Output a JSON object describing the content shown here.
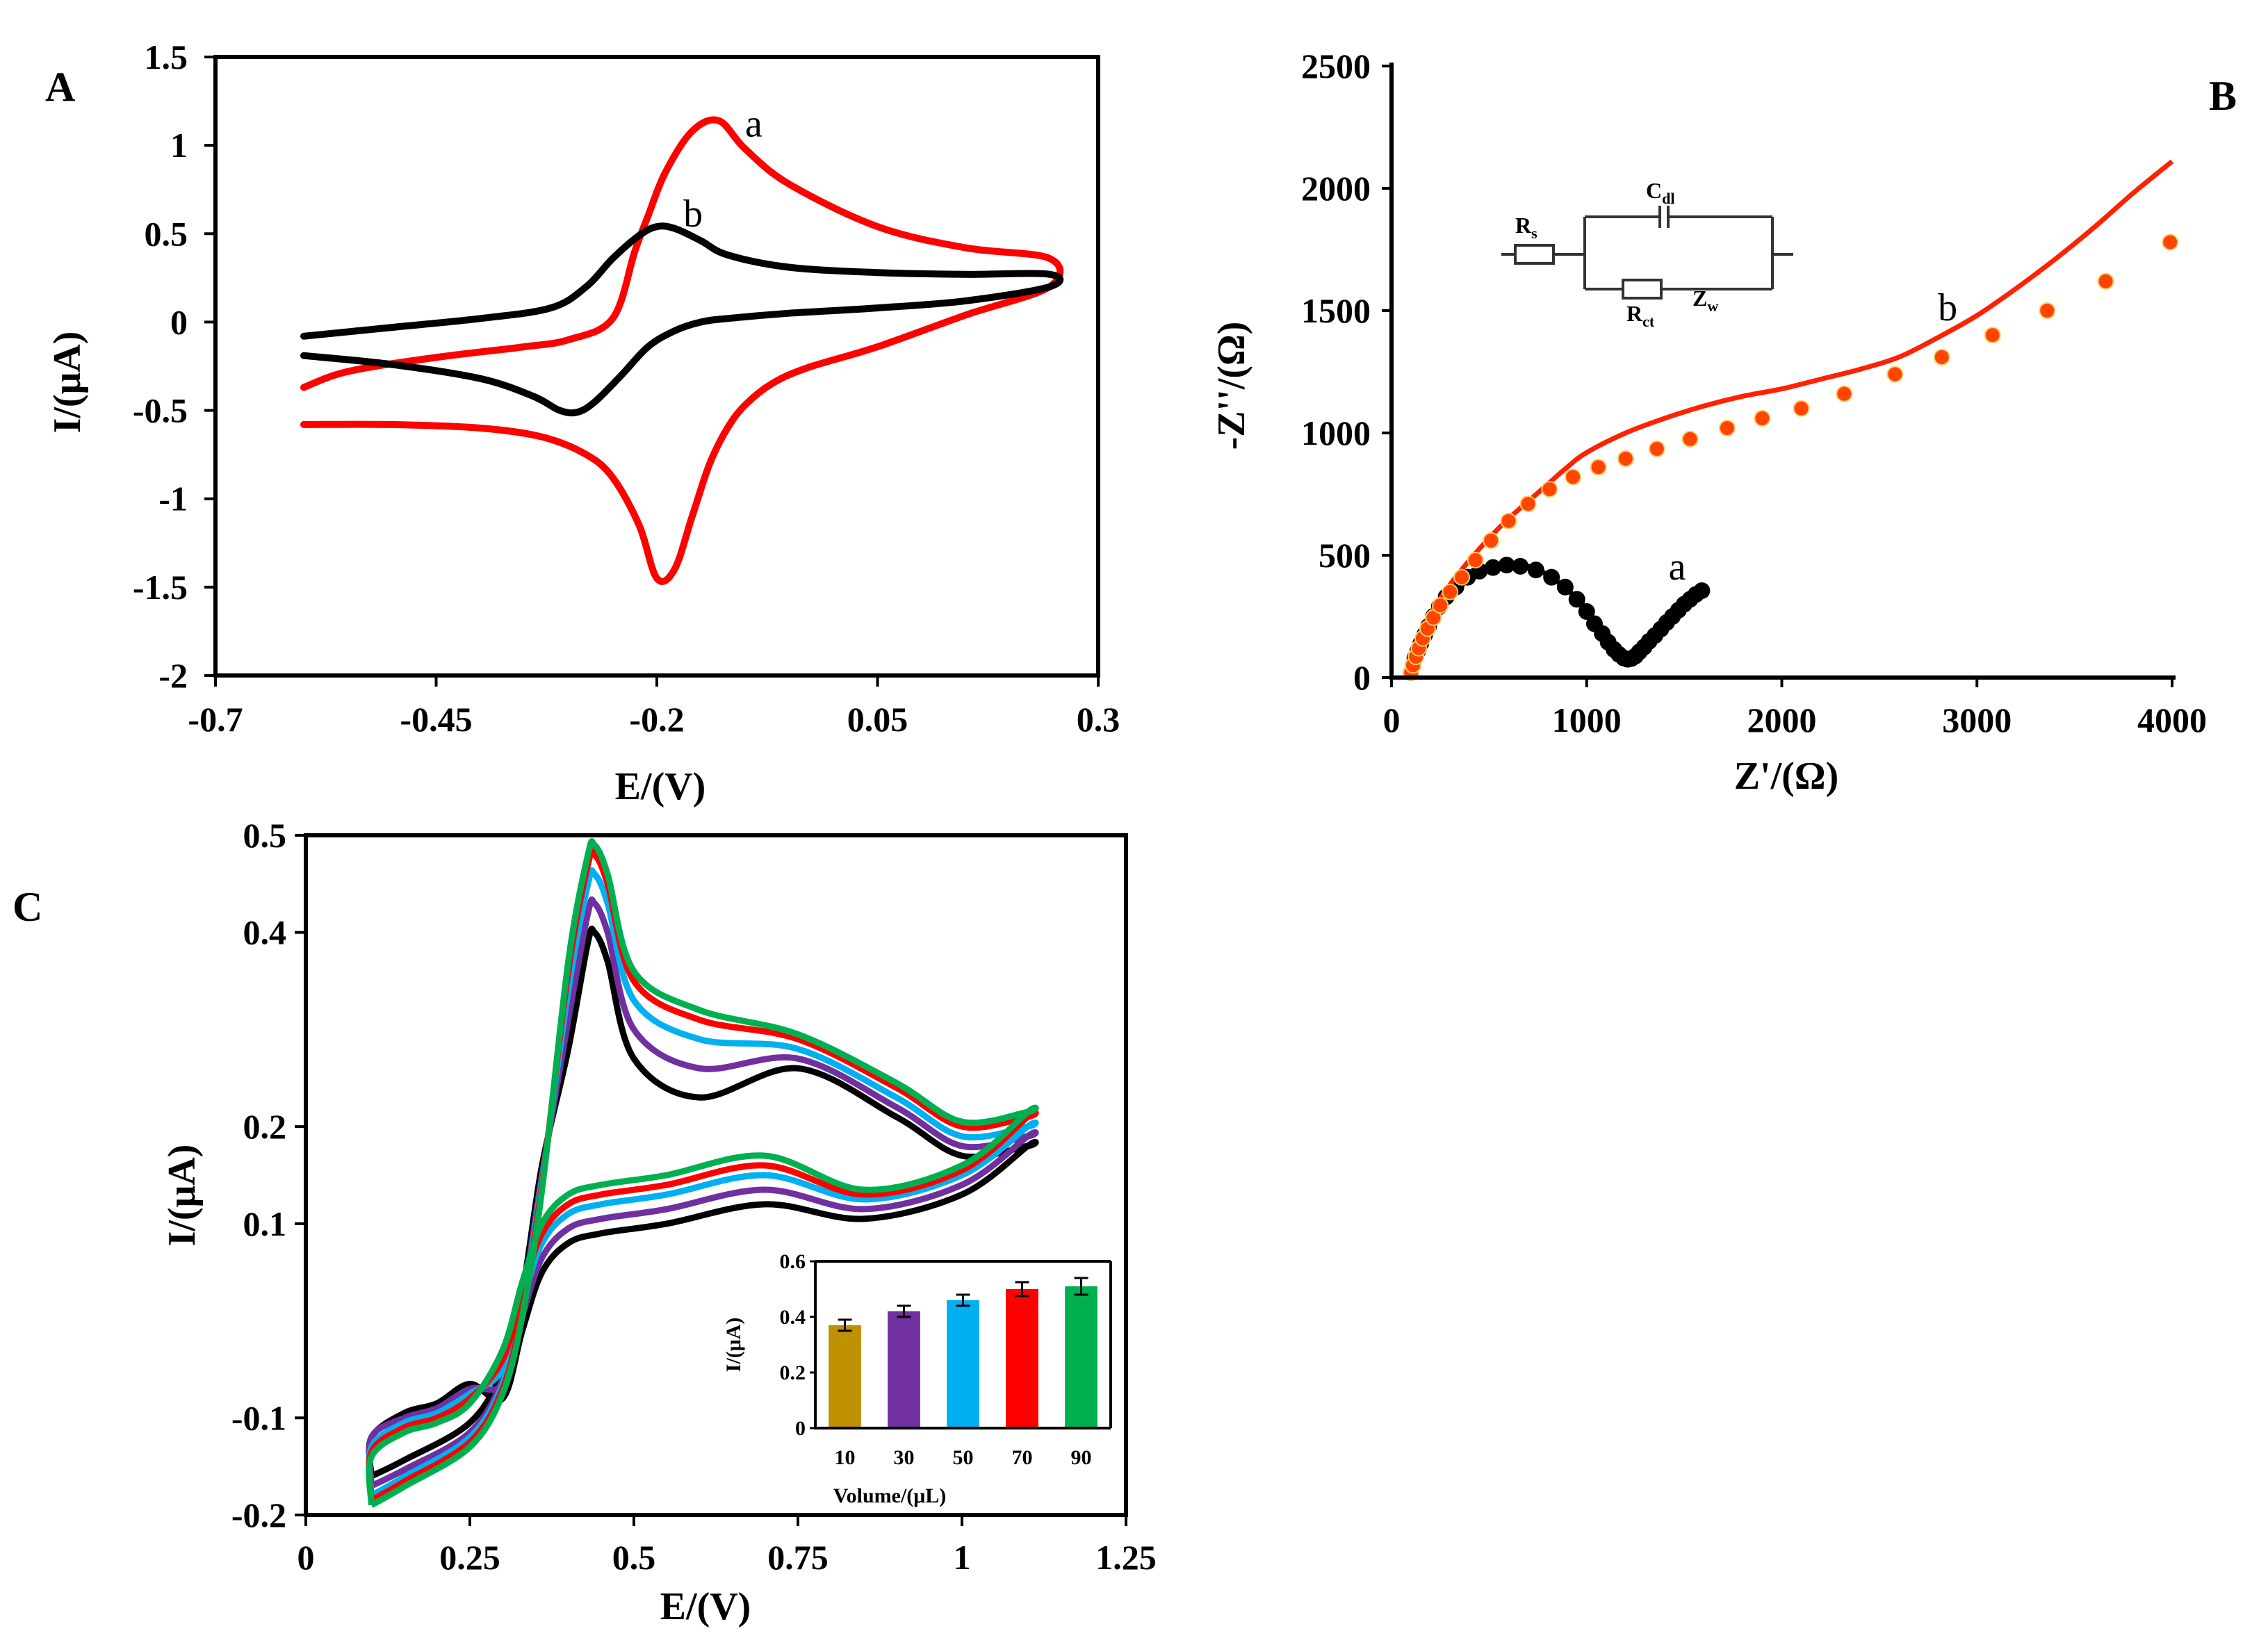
{
  "chart_data": [
    {
      "id": "A",
      "type": "line",
      "panel_label": "A",
      "xlabel": "E/(V)",
      "ylabel": "I/(μA)",
      "xlim": [
        -0.7,
        0.3
      ],
      "ylim": [
        -2,
        1.5
      ],
      "xticks": [
        -0.7,
        -0.45,
        -0.2,
        0.05,
        0.3
      ],
      "xtick_labels": [
        "-0.7",
        "-0.45",
        "-0.2",
        "0.05",
        "0.3"
      ],
      "yticks": [
        -2,
        -1.5,
        -1,
        -0.5,
        0,
        0.5,
        1,
        1.5
      ],
      "ytick_labels": [
        "-2",
        "-1.5",
        "-1",
        "-0.5",
        "0",
        "0.5",
        "1",
        "1.5"
      ],
      "series": [
        {
          "name": "a",
          "color": "#ff0000",
          "x": [
            -0.6,
            -0.5,
            -0.4,
            -0.33,
            -0.28,
            -0.25,
            -0.22,
            -0.2,
            -0.18,
            -0.16,
            -0.14,
            -0.12,
            -0.1,
            -0.07,
            -0.03,
            0.05,
            0.15,
            0.245,
            0.245,
            0.15,
            0.05,
            -0.05,
            -0.1,
            -0.13,
            -0.16,
            -0.19,
            -0.21,
            -0.225,
            -0.25,
            -0.3,
            -0.35,
            -0.45,
            -0.55,
            -0.6
          ],
          "y": [
            -0.58,
            -0.58,
            -0.6,
            -0.65,
            -0.75,
            -0.88,
            -1.15,
            -1.45,
            -1.4,
            -1.1,
            -0.8,
            -0.6,
            -0.47,
            -0.35,
            -0.26,
            -0.14,
            0.04,
            0.2,
            0.36,
            0.42,
            0.54,
            0.78,
            0.98,
            1.14,
            1.08,
            0.85,
            0.6,
            0.4,
            0.02,
            -0.1,
            -0.14,
            -0.2,
            -0.28,
            -0.37
          ],
          "label_at": [
            -0.1,
            1.05
          ]
        },
        {
          "name": "b",
          "color": "#000000",
          "x": [
            -0.6,
            -0.5,
            -0.4,
            -0.34,
            -0.31,
            -0.29,
            -0.27,
            -0.24,
            -0.21,
            -0.18,
            -0.15,
            -0.12,
            -0.05,
            0.05,
            0.15,
            0.245,
            0.245,
            0.15,
            0.05,
            -0.05,
            -0.12,
            -0.15,
            -0.18,
            -0.2,
            -0.22,
            -0.25,
            -0.28,
            -0.32,
            -0.4,
            -0.5,
            -0.6
          ],
          "y": [
            -0.19,
            -0.24,
            -0.32,
            -0.42,
            -0.5,
            -0.51,
            -0.45,
            -0.3,
            -0.14,
            -0.05,
            0.0,
            0.02,
            0.05,
            0.08,
            0.12,
            0.2,
            0.27,
            0.27,
            0.28,
            0.31,
            0.38,
            0.46,
            0.53,
            0.54,
            0.49,
            0.36,
            0.2,
            0.08,
            0.02,
            -0.03,
            -0.08
          ],
          "label_at": [
            -0.17,
            0.54
          ]
        }
      ]
    },
    {
      "id": "B",
      "type": "scatter",
      "panel_label": "B",
      "xlabel": "Z'/(Ω)",
      "ylabel": "-Z''/(Ω)",
      "xlim": [
        0,
        4000
      ],
      "ylim": [
        0,
        2500
      ],
      "xticks": [
        0,
        1000,
        2000,
        3000,
        4000
      ],
      "xtick_labels": [
        "0",
        "1000",
        "2000",
        "3000",
        "4000"
      ],
      "yticks": [
        0,
        500,
        1000,
        1500,
        2000,
        2500
      ],
      "ytick_labels": [
        "0",
        "500",
        "1000",
        "1500",
        "2000",
        "2500"
      ],
      "series": [
        {
          "name": "a",
          "color": "#000000",
          "mode": "markers+line",
          "x": [
            100,
            110,
            120,
            135,
            150,
            170,
            190,
            215,
            245,
            280,
            330,
            390,
            450,
            520,
            590,
            660,
            740,
            820,
            890,
            950,
            1000,
            1040,
            1080,
            1110,
            1140,
            1165,
            1190,
            1210,
            1230,
            1250,
            1270,
            1295,
            1320,
            1350,
            1380,
            1410,
            1440,
            1470,
            1500,
            1530,
            1560,
            1590
          ],
          "y": [
            20,
            50,
            80,
            110,
            140,
            175,
            210,
            250,
            290,
            330,
            370,
            410,
            435,
            450,
            460,
            455,
            440,
            410,
            370,
            320,
            270,
            220,
            180,
            145,
            115,
            95,
            80,
            75,
            78,
            88,
            105,
            125,
            148,
            172,
            198,
            225,
            250,
            275,
            300,
            320,
            340,
            355
          ],
          "fit_x": [
            100,
            150,
            200,
            300,
            400,
            500,
            600,
            700,
            800,
            900,
            1000,
            1100,
            1180,
            1240,
            1300,
            1400,
            1500,
            1600
          ],
          "fit_y": [
            0,
            150,
            240,
            340,
            400,
            440,
            460,
            455,
            420,
            360,
            280,
            160,
            90,
            80,
            110,
            200,
            280,
            370
          ],
          "label_at": [
            1420,
            400
          ]
        },
        {
          "name": "b",
          "color": "#ff2200",
          "marker_fill": "#ff4500",
          "mode": "markers+line",
          "x": [
            100,
            110,
            125,
            140,
            160,
            185,
            215,
            250,
            300,
            360,
            430,
            510,
            600,
            700,
            810,
            930,
            1060,
            1200,
            1360,
            1530,
            1720,
            1900,
            2100,
            2320,
            2580,
            2820,
            3080,
            3360,
            3660,
            3990
          ],
          "y": [
            20,
            50,
            85,
            120,
            160,
            200,
            245,
            295,
            350,
            410,
            480,
            560,
            640,
            710,
            770,
            820,
            860,
            895,
            935,
            975,
            1020,
            1060,
            1100,
            1160,
            1240,
            1310,
            1400,
            1500,
            1620,
            1780
          ],
          "fit_x": [
            100,
            150,
            200,
            300,
            400,
            500,
            600,
            700,
            800,
            900,
            1000,
            1200,
            1400,
            1600,
            1800,
            2000,
            2200,
            2400,
            2600,
            2800,
            3000,
            3200,
            3400,
            3600,
            3800,
            4000
          ],
          "fit_y": [
            0,
            170,
            260,
            380,
            480,
            570,
            650,
            720,
            790,
            860,
            920,
            1000,
            1060,
            1110,
            1150,
            1180,
            1220,
            1260,
            1310,
            1390,
            1480,
            1590,
            1710,
            1840,
            1980,
            2110
          ],
          "label_at": [
            2800,
            1460
          ]
        }
      ],
      "inset_circuit": {
        "labels": [
          "R",
          "s",
          "C",
          "dl",
          "R",
          "ct",
          "Z",
          "w"
        ]
      }
    },
    {
      "id": "C",
      "type": "line",
      "panel_label": "C",
      "xlabel": "E/(V)",
      "ylabel": "I/(μA)",
      "xlim": [
        0,
        1.25
      ],
      "ylim": [
        -0.2,
        0.5
      ],
      "xticks": [
        0,
        0.25,
        0.5,
        0.75,
        1,
        1.25
      ],
      "xtick_labels": [
        "0",
        "0.25",
        "0.5",
        "0.75",
        "1",
        "1.25"
      ],
      "yticks": [
        -0.2,
        -0.1,
        0.1,
        0.2,
        0.4,
        0.5
      ],
      "ytick_labels": [
        "-0.2",
        "-0.1",
        "0.1",
        "0.2",
        "0.4",
        "0.5"
      ],
      "series": [
        {
          "name": "10",
          "color": "#000000",
          "peak": 0.4,
          "tail": 0.17,
          "upper_end": 0.18,
          "lower_end": 0.14,
          "start_low": -0.16,
          "plateau_low": -0.13,
          "plateau": 0.09,
          "start_high": -0.12,
          "flat_high": -0.1
        },
        {
          "name": "30",
          "color": "#7030a0",
          "peak": 0.43,
          "tail": 0.18,
          "upper_end": 0.19,
          "lower_end": 0.15,
          "start_low": -0.17,
          "plateau_low": -0.14,
          "plateau": 0.105,
          "start_high": -0.12,
          "flat_high": -0.105
        },
        {
          "name": "50",
          "color": "#00b0f0",
          "peak": 0.46,
          "tail": 0.19,
          "upper_end": 0.2,
          "lower_end": 0.16,
          "start_low": -0.18,
          "plateau_low": -0.145,
          "plateau": 0.12,
          "start_high": -0.13,
          "flat_high": -0.11
        },
        {
          "name": "70",
          "color": "#ff0000",
          "peak": 0.48,
          "tail": 0.2,
          "upper_end": 0.21,
          "lower_end": 0.165,
          "start_low": -0.185,
          "plateau_low": -0.15,
          "plateau": 0.13,
          "start_high": -0.135,
          "flat_high": -0.115
        },
        {
          "name": "90",
          "color": "#00b050",
          "peak": 0.49,
          "tail": 0.205,
          "upper_end": 0.215,
          "lower_end": 0.17,
          "start_low": -0.19,
          "plateau_low": -0.155,
          "plateau": 0.14,
          "start_high": -0.14,
          "flat_high": -0.12
        }
      ],
      "inset": {
        "type": "bar",
        "xlabel": "Volume/(μL)",
        "ylabel": "I/(μA)",
        "categories": [
          "10",
          "30",
          "50",
          "70",
          "90"
        ],
        "values": [
          0.37,
          0.42,
          0.46,
          0.5,
          0.51
        ],
        "errors": [
          0.02,
          0.02,
          0.02,
          0.025,
          0.03
        ],
        "colors": [
          "#bf9000",
          "#7030a0",
          "#00b0f0",
          "#ff0000",
          "#00b050"
        ],
        "ylim": [
          0,
          0.6
        ],
        "yticks": [
          0,
          0.2,
          0.4,
          0.6
        ],
        "ytick_labels": [
          "0",
          "0.2",
          "0.4",
          "0.6"
        ]
      }
    }
  ]
}
